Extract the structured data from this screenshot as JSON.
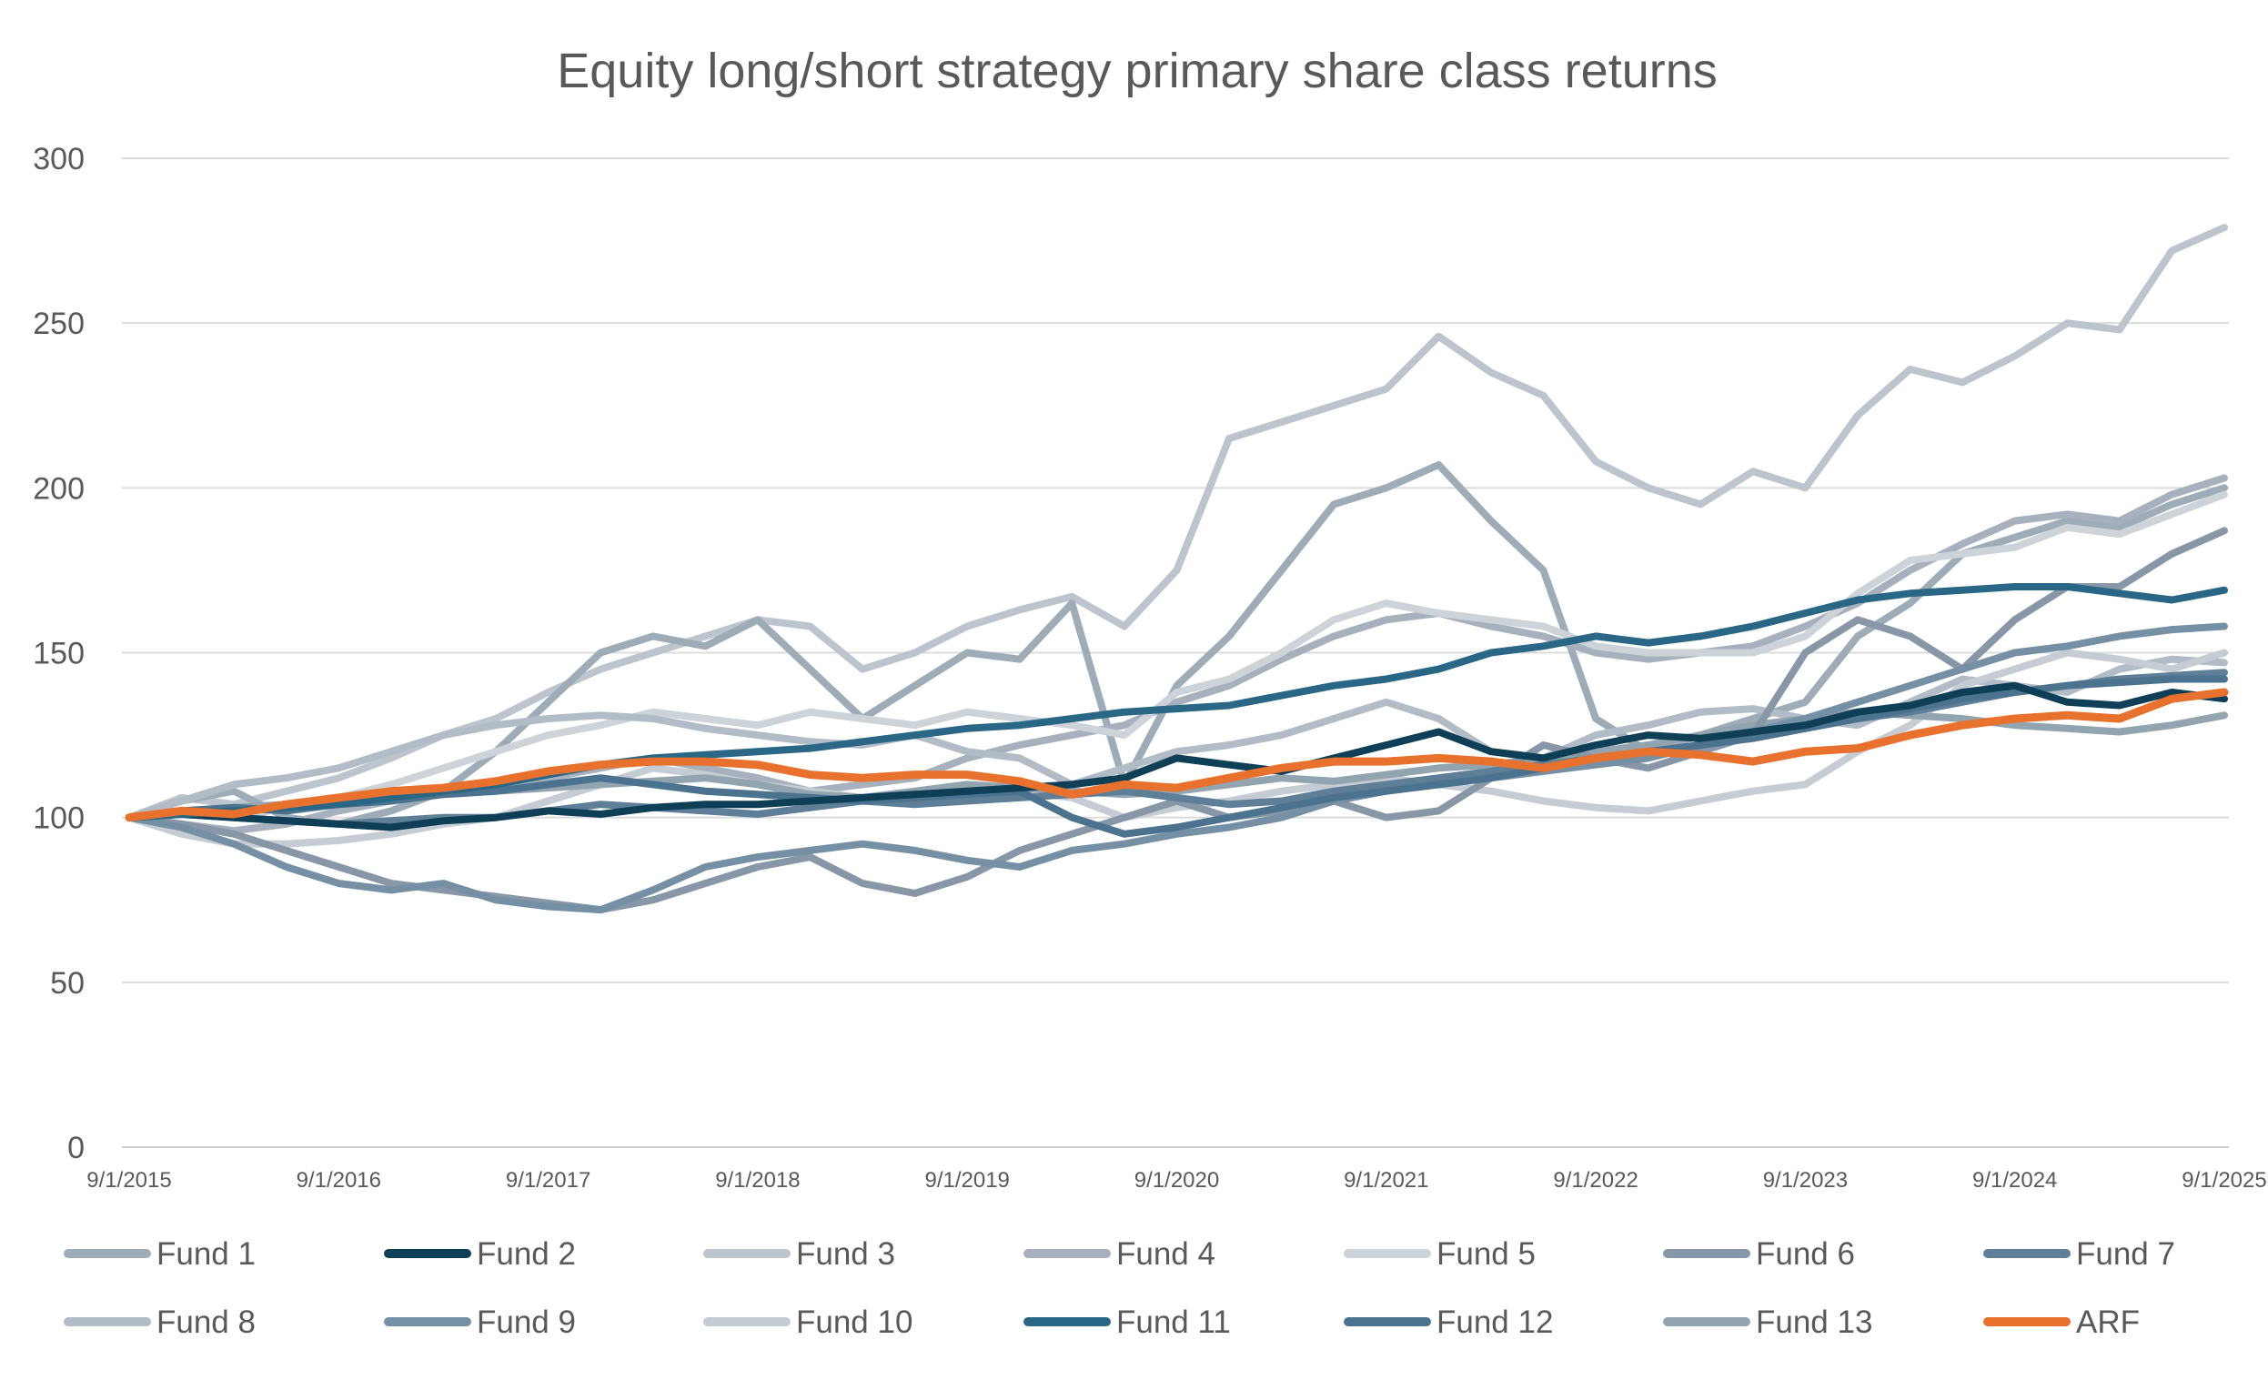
{
  "chart_data": {
    "type": "line",
    "title": "Equity long/short strategy primary share class returns",
    "xlabel": "",
    "ylabel": "",
    "ylim": [
      0,
      300
    ],
    "yticks": [
      "0",
      "50",
      "100",
      "150",
      "200",
      "250",
      "300"
    ],
    "xticks": [
      "9/1/2015",
      "9/1/2016",
      "9/1/2017",
      "9/1/2018",
      "9/1/2019",
      "9/1/2020",
      "9/1/2021",
      "9/1/2022",
      "9/1/2023",
      "9/1/2024",
      "9/1/2025"
    ],
    "x_start": "9/1/2015",
    "x_end": "9/1/2025",
    "x_step": "quarterly",
    "grid": "horizontal",
    "legend": "bottom",
    "series": [
      {
        "name": "Fund 1",
        "color": "#9eacb8",
        "values": [
          100,
          105,
          108,
          100,
          98,
          102,
          108,
          120,
          135,
          150,
          155,
          152,
          160,
          145,
          130,
          140,
          150,
          148,
          165,
          110,
          140,
          155,
          175,
          195,
          200,
          207,
          190,
          175,
          130,
          120,
          125,
          130,
          135,
          155,
          165,
          180,
          185,
          190,
          188,
          195,
          200
        ]
      },
      {
        "name": "Fund 2",
        "color": "#0e3f57",
        "values": [
          100,
          101,
          100,
          99,
          98,
          97,
          99,
          100,
          102,
          101,
          103,
          104,
          104,
          105,
          106,
          107,
          108,
          109,
          110,
          112,
          118,
          116,
          114,
          118,
          122,
          126,
          120,
          118,
          122,
          125,
          124,
          126,
          128,
          132,
          134,
          138,
          140,
          135,
          134,
          138,
          136
        ]
      },
      {
        "name": "Fund 3",
        "color": "#bcc5ce",
        "values": [
          100,
          106,
          104,
          108,
          112,
          118,
          125,
          130,
          138,
          145,
          150,
          155,
          160,
          158,
          145,
          150,
          158,
          163,
          167,
          158,
          175,
          215,
          220,
          225,
          230,
          246,
          235,
          228,
          208,
          200,
          195,
          205,
          200,
          222,
          236,
          232,
          240,
          250,
          248,
          272,
          279
        ]
      },
      {
        "name": "Fund 4",
        "color": "#a6b1bd",
        "values": [
          100,
          98,
          96,
          98,
          102,
          105,
          108,
          110,
          112,
          115,
          118,
          115,
          112,
          108,
          110,
          112,
          118,
          122,
          125,
          128,
          135,
          140,
          148,
          155,
          160,
          162,
          158,
          155,
          150,
          148,
          150,
          152,
          158,
          165,
          175,
          183,
          190,
          192,
          190,
          198,
          203
        ]
      },
      {
        "name": "Fund 5",
        "color": "#ccd3d9",
        "values": [
          100,
          102,
          100,
          103,
          106,
          110,
          115,
          120,
          125,
          128,
          132,
          130,
          128,
          132,
          130,
          128,
          132,
          130,
          128,
          125,
          138,
          142,
          150,
          160,
          165,
          162,
          160,
          158,
          152,
          150,
          150,
          150,
          155,
          168,
          178,
          180,
          182,
          188,
          186,
          192,
          198
        ]
      },
      {
        "name": "Fund 6",
        "color": "#8797a8",
        "values": [
          100,
          98,
          95,
          90,
          85,
          80,
          78,
          76,
          74,
          72,
          75,
          80,
          85,
          88,
          80,
          77,
          82,
          90,
          95,
          100,
          105,
          100,
          102,
          105,
          100,
          102,
          112,
          122,
          118,
          115,
          120,
          125,
          150,
          160,
          155,
          145,
          160,
          170,
          170,
          180,
          187
        ]
      },
      {
        "name": "Fund 7",
        "color": "#5f7f99",
        "values": [
          100,
          101,
          100,
          99,
          98,
          99,
          100,
          100,
          102,
          104,
          103,
          102,
          101,
          103,
          105,
          104,
          105,
          106,
          107,
          108,
          106,
          104,
          105,
          108,
          110,
          112,
          114,
          116,
          118,
          120,
          122,
          125,
          128,
          130,
          132,
          135,
          138,
          140,
          142,
          143,
          144
        ]
      },
      {
        "name": "Fund 8",
        "color": "#b2bcc6",
        "values": [
          100,
          105,
          110,
          112,
          115,
          120,
          125,
          128,
          130,
          131,
          130,
          127,
          125,
          123,
          122,
          125,
          120,
          118,
          110,
          115,
          120,
          122,
          125,
          130,
          135,
          130,
          120,
          118,
          125,
          128,
          132,
          133,
          130,
          128,
          135,
          142,
          140,
          138,
          145,
          148,
          147
        ]
      },
      {
        "name": "Fund 9",
        "color": "#7590a5",
        "values": [
          100,
          97,
          92,
          85,
          80,
          78,
          80,
          75,
          73,
          72,
          78,
          85,
          88,
          90,
          92,
          90,
          87,
          85,
          90,
          92,
          95,
          97,
          100,
          105,
          108,
          110,
          112,
          114,
          116,
          118,
          122,
          126,
          130,
          135,
          140,
          145,
          150,
          152,
          155,
          157,
          158
        ]
      },
      {
        "name": "Fund 10",
        "color": "#c5ccd4",
        "values": [
          100,
          95,
          92,
          92,
          93,
          95,
          98,
          100,
          105,
          110,
          115,
          113,
          110,
          108,
          106,
          105,
          107,
          108,
          106,
          100,
          103,
          105,
          108,
          110,
          112,
          110,
          108,
          105,
          103,
          102,
          105,
          108,
          110,
          120,
          128,
          140,
          145,
          150,
          148,
          145,
          150
        ]
      },
      {
        "name": "Fund 11",
        "color": "#2a6787",
        "values": [
          100,
          101,
          102,
          103,
          104,
          106,
          108,
          110,
          113,
          116,
          118,
          119,
          120,
          121,
          123,
          125,
          127,
          128,
          130,
          132,
          133,
          134,
          137,
          140,
          142,
          145,
          150,
          152,
          155,
          153,
          155,
          158,
          162,
          166,
          168,
          169,
          170,
          170,
          168,
          166,
          169
        ]
      },
      {
        "name": "Fund 12",
        "color": "#4b7390",
        "values": [
          100,
          102,
          103,
          102,
          104,
          105,
          107,
          108,
          110,
          112,
          110,
          108,
          107,
          106,
          105,
          106,
          107,
          108,
          100,
          95,
          97,
          100,
          103,
          106,
          108,
          110,
          112,
          115,
          118,
          120,
          122,
          124,
          127,
          130,
          133,
          136,
          138,
          140,
          141,
          142,
          142
        ]
      },
      {
        "name": "Fund 13",
        "color": "#93a4b1",
        "values": [
          100,
          101,
          103,
          104,
          105,
          106,
          107,
          108,
          109,
          110,
          111,
          112,
          110,
          107,
          106,
          108,
          110,
          109,
          108,
          107,
          108,
          110,
          112,
          111,
          113,
          115,
          116,
          118,
          120,
          122,
          125,
          128,
          130,
          132,
          131,
          130,
          128,
          127,
          126,
          128,
          131
        ]
      },
      {
        "name": "ARF",
        "color": "#e8712e",
        "values": [
          100,
          102,
          101,
          104,
          106,
          108,
          109,
          111,
          114,
          116,
          117,
          117,
          116,
          113,
          112,
          113,
          113,
          111,
          107,
          110,
          109,
          112,
          115,
          117,
          117,
          118,
          117,
          115,
          118,
          120,
          119,
          117,
          120,
          121,
          125,
          128,
          130,
          131,
          130,
          136,
          138
        ]
      }
    ]
  }
}
